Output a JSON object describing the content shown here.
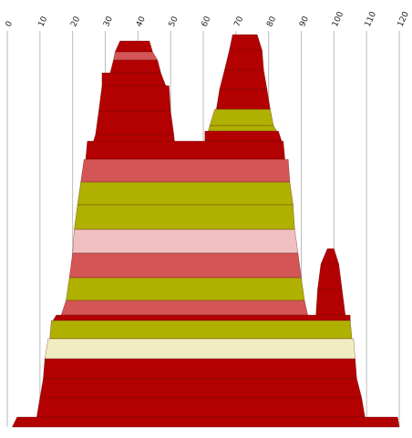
{
  "chart_data": {
    "type": "layered-area",
    "xlim": [
      0,
      120
    ],
    "xticks": [
      0,
      10,
      20,
      30,
      40,
      50,
      60,
      70,
      80,
      90,
      100,
      110,
      120
    ],
    "grid": true,
    "bands": [
      {
        "color": "#b30000",
        "top": [
          34.5,
          43.5
        ],
        "bottom": [
          33,
          44.5
        ]
      },
      {
        "color": "#d45555",
        "top": [
          33,
          44.5
        ],
        "bottom": [
          32.5,
          46
        ]
      },
      {
        "color": "#b30000",
        "top": [
          32.5,
          46
        ],
        "bottom": [
          31.5,
          47
        ]
      },
      {
        "color": "#b30000",
        "top": [
          29,
          47
        ],
        "bottom": [
          29,
          48.5
        ]
      },
      {
        "color": "#b30000",
        "top": [
          29,
          49.5
        ],
        "bottom": [
          28,
          50
        ]
      },
      {
        "color": "#b30000",
        "top": [
          28,
          50
        ],
        "bottom": [
          27,
          51
        ]
      },
      {
        "color": "#b30000",
        "top": [
          27,
          51
        ],
        "bottom": [
          25.5,
          51.5
        ]
      },
      {
        "color": "#b30000",
        "top": [
          69,
          76.5
        ],
        "bottom": [
          68,
          78
        ]
      },
      {
        "color": "#b30000",
        "top": [
          68,
          78
        ],
        "bottom": [
          66.5,
          78.5
        ]
      },
      {
        "color": "#b30000",
        "top": [
          66.5,
          78.5
        ],
        "bottom": [
          65,
          79.5
        ]
      },
      {
        "color": "#b30000",
        "top": [
          65,
          79.5
        ],
        "bottom": [
          64,
          80.5
        ]
      },
      {
        "color": "#b0b000",
        "top": [
          63.5,
          80.5
        ],
        "bottom": [
          62,
          81.5
        ]
      },
      {
        "color": "#b0b000",
        "top": [
          62,
          81.5
        ],
        "bottom": [
          61.5,
          82.5
        ]
      },
      {
        "color": "#b30000",
        "top": [
          60.5,
          83
        ],
        "bottom": [
          60.5,
          84
        ]
      },
      {
        "color": "#b30000",
        "top": [
          24.5,
          84.5
        ],
        "bottom": [
          24,
          85
        ]
      },
      {
        "color": "#d45555",
        "top": [
          23.5,
          86
        ],
        "bottom": [
          22.5,
          86.5
        ]
      },
      {
        "color": "#b0b000",
        "top": [
          22.5,
          86.5
        ],
        "bottom": [
          21.5,
          87.5
        ]
      },
      {
        "color": "#b0b000",
        "top": [
          21.5,
          87.5
        ],
        "bottom": [
          20.5,
          88
        ]
      },
      {
        "color": "#f0c0c0",
        "top": [
          20.5,
          88
        ],
        "bottom": [
          20,
          89
        ]
      },
      {
        "color": "#d45555",
        "top": [
          20,
          89
        ],
        "bottom": [
          19,
          90
        ]
      },
      {
        "color": "#b0b000",
        "top": [
          19,
          90
        ],
        "bottom": [
          18,
          91
        ]
      },
      {
        "color": "#d45555",
        "top": [
          18,
          91
        ],
        "bottom": [
          16.5,
          92
        ]
      },
      {
        "color": "#b30000",
        "top": [
          98,
          100
        ],
        "bottom": [
          96,
          101.5
        ]
      },
      {
        "color": "#b30000",
        "top": [
          96,
          101.5
        ],
        "bottom": [
          95,
          102.5
        ]
      },
      {
        "color": "#b30000",
        "top": [
          95,
          102.5
        ],
        "bottom": [
          94.5,
          103.5
        ]
      },
      {
        "color": "#b30000",
        "top": [
          15,
          105
        ],
        "bottom": [
          14,
          105
        ]
      },
      {
        "color": "#b0b000",
        "top": [
          13.5,
          105
        ],
        "bottom": [
          13,
          105.5
        ]
      },
      {
        "color": "#f0eec0",
        "top": [
          12.5,
          106
        ],
        "bottom": [
          11.5,
          106.5
        ]
      },
      {
        "color": "#b30000",
        "top": [
          11.5,
          106.5
        ],
        "bottom": [
          11,
          107
        ]
      },
      {
        "color": "#b30000",
        "top": [
          11,
          107
        ],
        "bottom": [
          10,
          108.5
        ]
      },
      {
        "color": "#b30000",
        "top": [
          10,
          108.5
        ],
        "bottom": [
          9,
          109.5
        ]
      },
      {
        "color": "#b30000",
        "top": [
          3,
          119.5
        ],
        "bottom": [
          1.5,
          120
        ]
      }
    ]
  }
}
